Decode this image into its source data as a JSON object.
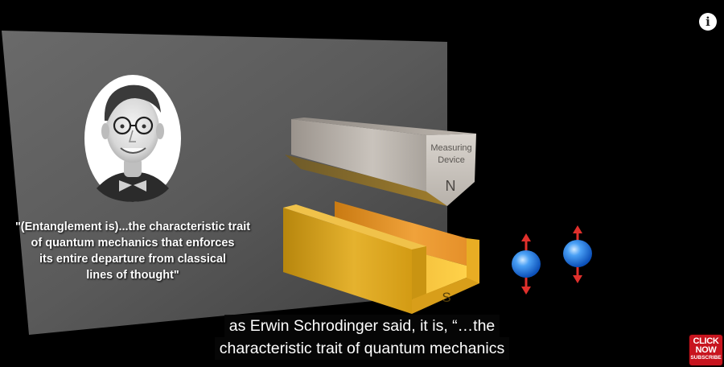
{
  "video": {
    "quote_lines": [
      "\"(Entanglement is)...the characteristic trait",
      "of quantum mechanics that enforces",
      "its entire departure from classical",
      "lines of thought\""
    ],
    "device_label_line1": "Measuring",
    "device_label_line2": "Device",
    "magnet_north": "N",
    "magnet_south": "S",
    "portrait": "erwin-schrodinger-portrait",
    "particles": [
      "spin-up-down-particle",
      "spin-up-down-particle"
    ],
    "colors": {
      "background": "#000000",
      "panel": "#555555",
      "magnet_gold": "#d99a1e",
      "particle_blue": "#2f8ff0",
      "spin_arrow": "#e0302c"
    }
  },
  "player": {
    "info_icon_glyph": "i",
    "captions": [
      "as Erwin Schrodinger said, it is, “…the",
      "characteristic trait of quantum mechanics"
    ]
  },
  "badge": {
    "line1": "CLICK",
    "line2": "NOW",
    "line3": "SUBSCRIBE"
  }
}
